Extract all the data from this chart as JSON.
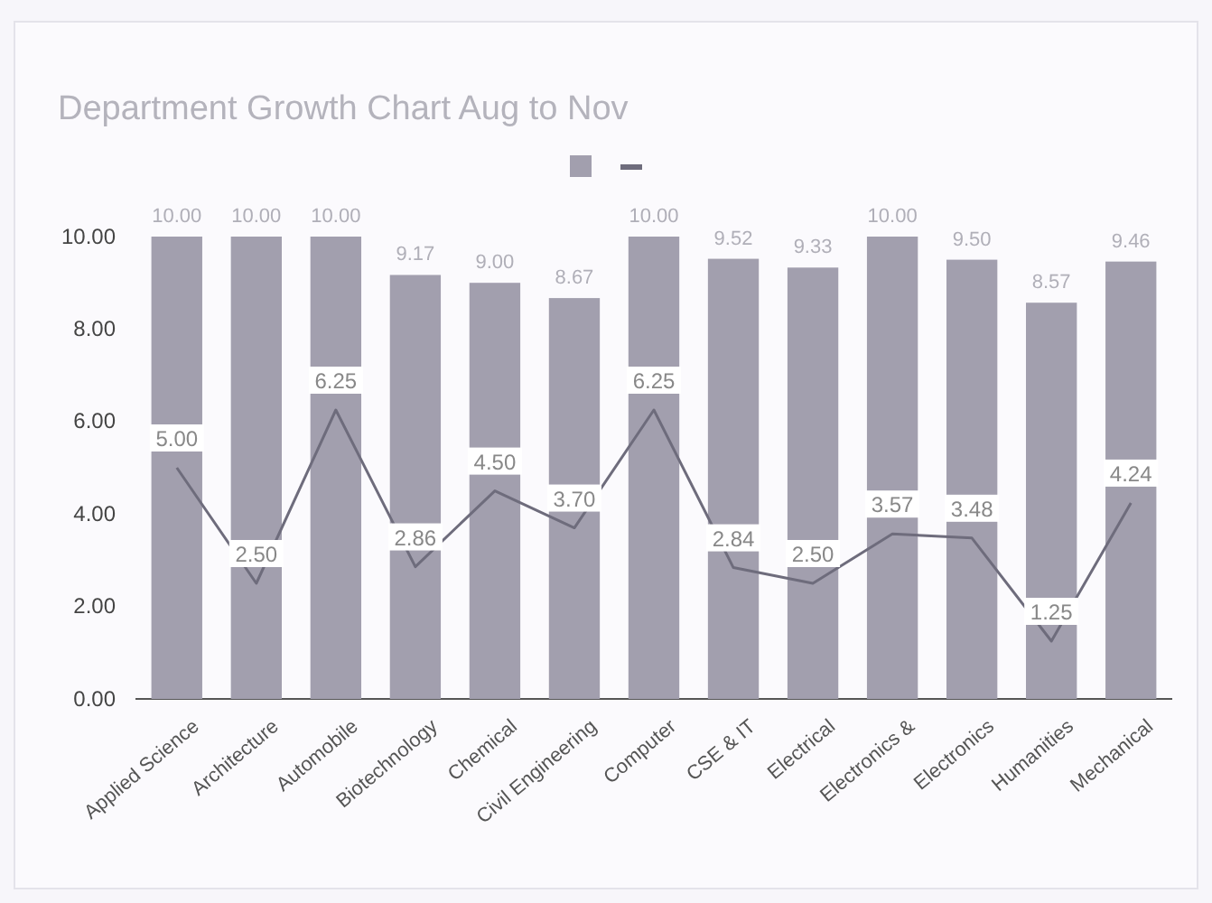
{
  "chart_data": {
    "type": "bar",
    "title": "Department Growth Chart Aug to Nov",
    "categories": [
      "Applied Science",
      "Architecture",
      "Automobile",
      "Biotechnology",
      "Chemical",
      "Civil Engineering",
      "Computer",
      "CSE & IT",
      "Electrical",
      "Electronics &",
      "Electronics",
      "Humanities",
      "Mechanical"
    ],
    "series": [
      {
        "color": "#a29fae",
        "values": [
          10.0,
          10.0,
          10.0,
          9.17,
          9.0,
          8.67,
          10.0,
          9.52,
          9.33,
          10.0,
          9.5,
          8.57,
          9.46
        ],
        "value_labels": [
          "10.00",
          "10.00",
          "10.00",
          "9.17",
          "9.00",
          "8.67",
          "10.00",
          "9.52",
          "9.33",
          "10.00",
          "9.50",
          "8.57",
          "9.46"
        ]
      },
      {
        "type": "line",
        "color": "#6e6c7c",
        "values": [
          5.0,
          2.5,
          6.25,
          2.86,
          4.5,
          3.7,
          6.25,
          2.84,
          2.5,
          3.57,
          3.48,
          1.25,
          4.24
        ],
        "value_labels": [
          "5.00",
          "2.50",
          "6.25",
          "2.86",
          "4.50",
          "3.70",
          "6.25",
          "2.84",
          "2.50",
          "3.57",
          "3.48",
          "1.25",
          "4.24"
        ]
      }
    ],
    "ylim": [
      0,
      10
    ],
    "yticks": [
      {
        "value": 0,
        "label": "0.00"
      },
      {
        "value": 2,
        "label": "2.00"
      },
      {
        "value": 4,
        "label": "4.00"
      },
      {
        "value": 6,
        "label": "6.00"
      },
      {
        "value": 8,
        "label": "8.00"
      },
      {
        "value": 10,
        "label": "10.00"
      }
    ],
    "grid": false,
    "marker": "none"
  }
}
